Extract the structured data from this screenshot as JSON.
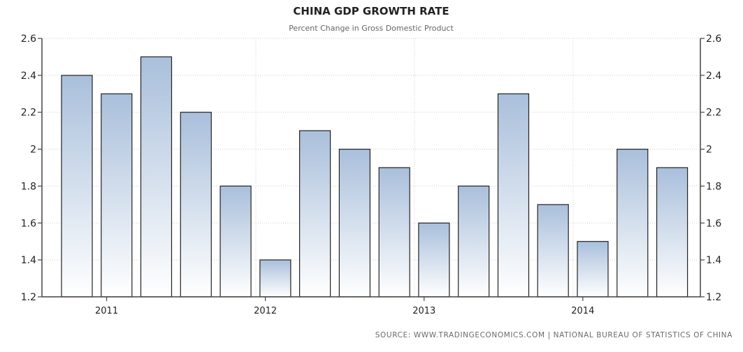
{
  "chart_data": {
    "type": "bar",
    "title": "CHINA GDP GROWTH RATE",
    "subtitle": "Percent Change in Gross Domestic Product",
    "source": "SOURCE: WWW.TRADINGECONOMICS.COM | NATIONAL BUREAU OF STATISTICS OF CHINA",
    "ylim": [
      1.2,
      2.6
    ],
    "yticks": [
      1.2,
      1.4,
      1.6,
      1.8,
      2,
      2.2,
      2.4,
      2.6
    ],
    "ytick_labels": [
      "1.2",
      "1.4",
      "1.6",
      "1.8",
      "2",
      "2.2",
      "2.4",
      "2.6"
    ],
    "x_labels": [
      "2011",
      "2012",
      "2013",
      "2014"
    ],
    "x_label_bar_index": [
      0.75,
      4.75,
      8.75,
      12.75
    ],
    "values": [
      2.4,
      2.3,
      2.5,
      2.2,
      1.8,
      1.4,
      2.1,
      2.0,
      1.9,
      1.6,
      1.8,
      2.3,
      1.7,
      1.5,
      2.0,
      1.9
    ],
    "grid": true,
    "y_axis_both_sides": true,
    "colors": {
      "bar_top": "#a9bfdb",
      "bar_bottom": "#ffffff",
      "bar_edge": "#222222"
    }
  }
}
